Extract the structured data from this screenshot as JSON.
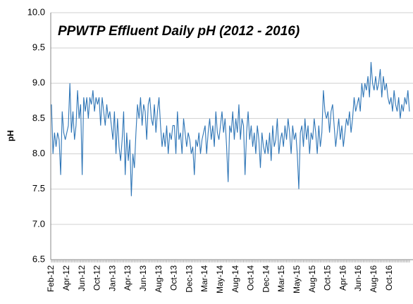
{
  "chart_data": {
    "type": "line",
    "title": "PPWTP Effluent Daily pH (2012 - 2016)",
    "y_label": "pH",
    "categories": [
      "Feb-12",
      null,
      null,
      null,
      null,
      null,
      null,
      null,
      null,
      null,
      "Apr-12",
      null,
      null,
      null,
      null,
      null,
      null,
      null,
      null,
      null,
      "Jun-12",
      null,
      null,
      null,
      null,
      null,
      null,
      null,
      null,
      null,
      "Oct-12",
      null,
      null,
      null,
      null,
      null,
      null,
      null,
      null,
      null,
      "Jan-13",
      null,
      null,
      null,
      null,
      null,
      null,
      null,
      null,
      null,
      "Apr-13",
      null,
      null,
      null,
      null,
      null,
      null,
      null,
      null,
      null,
      "Jun-13",
      null,
      null,
      null,
      null,
      null,
      null,
      null,
      null,
      null,
      "Aug-13",
      null,
      null,
      null,
      null,
      null,
      null,
      null,
      null,
      null,
      "Oct-13",
      null,
      null,
      null,
      null,
      null,
      null,
      null,
      null,
      null,
      "Dec-13",
      null,
      null,
      null,
      null,
      null,
      null,
      null,
      null,
      null,
      "Mar-14",
      null,
      null,
      null,
      null,
      null,
      null,
      null,
      null,
      null,
      "May-14",
      null,
      null,
      null,
      null,
      null,
      null,
      null,
      null,
      null,
      "Aug-14",
      null,
      null,
      null,
      null,
      null,
      null,
      null,
      null,
      null,
      "Oct-14",
      null,
      null,
      null,
      null,
      null,
      null,
      null,
      null,
      null,
      "Dec-14",
      null,
      null,
      null,
      null,
      null,
      null,
      null,
      null,
      null,
      "Mar-15",
      null,
      null,
      null,
      null,
      null,
      null,
      null,
      null,
      null,
      "May-15",
      null,
      null,
      null,
      null,
      null,
      null,
      null,
      null,
      null,
      "Aug-15",
      null,
      null,
      null,
      null,
      null,
      null,
      null,
      null,
      null,
      "Oct-15",
      null,
      null,
      null,
      null,
      null,
      null,
      null,
      null,
      null,
      "Apr-16",
      null,
      null,
      null,
      null,
      null,
      null,
      null,
      null,
      null,
      "Jun-16",
      null,
      null,
      null,
      null,
      null,
      null,
      null,
      null,
      null,
      "Aug-16",
      null,
      null,
      null,
      null,
      null,
      null,
      null,
      null,
      null,
      "Oct-16",
      null,
      null,
      null,
      null,
      null,
      null,
      null,
      null,
      null,
      null,
      null,
      null,
      null
    ],
    "values": [
      8.7,
      8.0,
      8.3,
      8.1,
      8.3,
      8.2,
      7.7,
      8.6,
      8.3,
      8.2,
      8.3,
      8.4,
      9.0,
      8.3,
      8.6,
      8.2,
      8.4,
      8.9,
      8.5,
      8.7,
      7.7,
      8.8,
      8.6,
      8.8,
      8.5,
      8.8,
      8.7,
      8.9,
      8.6,
      8.8,
      8.7,
      8.8,
      8.4,
      8.8,
      8.6,
      8.4,
      8.7,
      8.5,
      8.6,
      8.4,
      8.2,
      8.6,
      8.0,
      8.5,
      8.1,
      7.9,
      8.2,
      8.6,
      7.7,
      8.3,
      7.9,
      8.2,
      7.4,
      8.0,
      7.8,
      8.3,
      8.7,
      8.5,
      8.8,
      8.4,
      8.7,
      8.6,
      8.2,
      8.7,
      8.8,
      8.5,
      8.4,
      8.7,
      8.3,
      8.6,
      8.8,
      8.4,
      8.1,
      8.3,
      8.1,
      8.4,
      8.0,
      8.3,
      8.2,
      8.4,
      8.4,
      8.0,
      8.6,
      8.2,
      8.3,
      8.0,
      8.5,
      8.3,
      8.1,
      8.3,
      8.2,
      8.0,
      8.1,
      7.7,
      8.2,
      8.1,
      8.3,
      8.0,
      8.2,
      8.3,
      8.4,
      8.0,
      8.3,
      8.5,
      8.2,
      8.4,
      8.1,
      8.6,
      8.3,
      8.2,
      8.4,
      8.6,
      8.3,
      8.5,
      8.1,
      7.6,
      8.4,
      8.3,
      8.6,
      8.2,
      8.5,
      8.3,
      8.7,
      8.2,
      8.5,
      8.4,
      7.7,
      8.3,
      8.6,
      8.2,
      8.4,
      8.1,
      8.3,
      8.0,
      8.4,
      8.2,
      7.8,
      8.3,
      8.1,
      8.0,
      8.2,
      8.0,
      8.3,
      7.9,
      8.4,
      8.1,
      8.2,
      8.5,
      8.0,
      8.2,
      8.3,
      8.1,
      8.4,
      8.2,
      8.5,
      8.3,
      8.0,
      8.4,
      8.2,
      8.3,
      8.0,
      7.5,
      8.3,
      8.4,
      8.1,
      8.5,
      8.2,
      8.4,
      8.0,
      8.3,
      8.2,
      8.5,
      8.3,
      8.0,
      8.4,
      8.1,
      8.3,
      8.9,
      8.6,
      8.5,
      8.6,
      8.3,
      8.6,
      8.7,
      8.4,
      8.1,
      8.3,
      8.5,
      8.2,
      8.4,
      8.1,
      8.3,
      8.5,
      8.4,
      8.6,
      8.3,
      8.5,
      8.8,
      8.6,
      8.7,
      8.8,
      8.6,
      9.0,
      8.8,
      9.0,
      8.9,
      9.1,
      8.8,
      9.3,
      9.0,
      8.9,
      9.1,
      8.9,
      9.0,
      9.2,
      8.8,
      9.1,
      8.9,
      9.0,
      8.8,
      8.7,
      8.8,
      8.6,
      8.9,
      8.7,
      8.6,
      8.8,
      8.5,
      8.7,
      8.6,
      8.8,
      8.7,
      8.9,
      8.6
    ],
    "color": "#2e75b6",
    "ylim": [
      6.5,
      10
    ],
    "yticks": [
      6.5,
      {
        "value": 7,
        "label": "7.0"
      },
      7.5,
      {
        "value": 8,
        "label": "8.0"
      },
      8.5,
      {
        "value": 9,
        "label": "9.0"
      },
      9.5,
      {
        "value": 10,
        "label": "10.0"
      }
    ],
    "grid": true
  }
}
